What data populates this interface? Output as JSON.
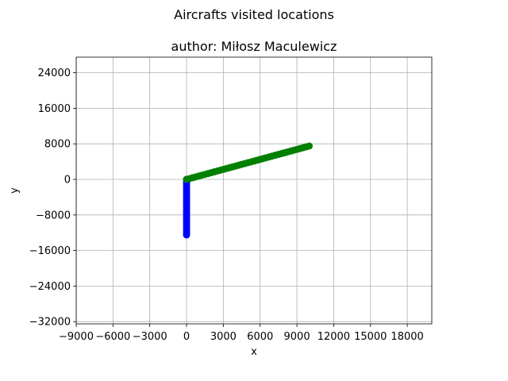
{
  "chart_data": {
    "type": "scatter",
    "title": "Aircrafts visited locations",
    "subtitle": "author: Miłosz Maculewicz",
    "xlabel": "x",
    "ylabel": "y",
    "xlim": [
      -9000,
      20000
    ],
    "ylim": [
      -32500,
      27500
    ],
    "xticks": [
      -9000,
      -6000,
      -3000,
      0,
      3000,
      6000,
      9000,
      12000,
      15000,
      18000
    ],
    "xtick_labels": [
      "−9000",
      "−6000",
      "−3000",
      "0",
      "3000",
      "6000",
      "9000",
      "12000",
      "15000",
      "18000"
    ],
    "yticks": [
      -32000,
      -24000,
      -16000,
      -8000,
      0,
      8000,
      16000,
      24000
    ],
    "ytick_labels": [
      "−32000",
      "−24000",
      "−16000",
      "−8000",
      "0",
      "8000",
      "16000",
      "24000"
    ],
    "grid": true,
    "series": [
      {
        "color": "#0000ff",
        "from": [
          0,
          0
        ],
        "to": [
          0,
          -12500
        ],
        "count": 26
      },
      {
        "color": "#008000",
        "from": [
          0,
          0
        ],
        "to": [
          10000,
          7500
        ],
        "count": 41
      }
    ]
  }
}
